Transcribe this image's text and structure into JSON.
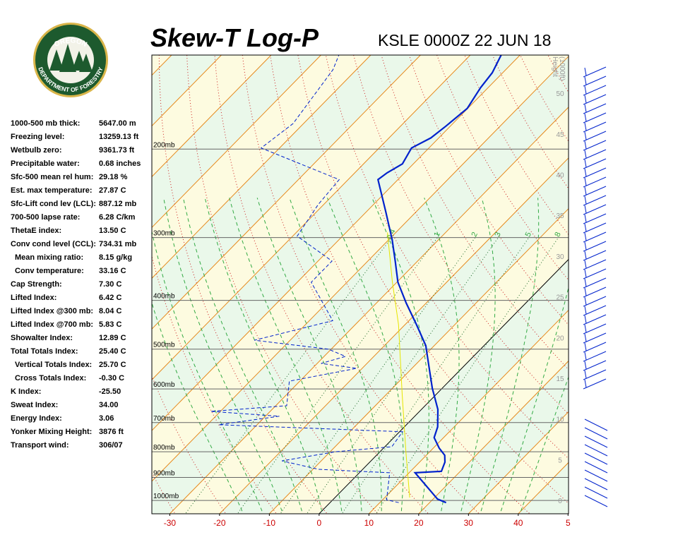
{
  "logo": {
    "top": "OREGON",
    "bottom": "DEPARTMENT OF FORESTRY"
  },
  "stats": [
    {
      "label": "1000-500 mb thick:",
      "value": "5647.00 m"
    },
    {
      "label": "Freezing level:",
      "value": "13259.13 ft"
    },
    {
      "label": "Wetbulb zero:",
      "value": "9361.73 ft"
    },
    {
      "label": "Precipitable water:",
      "value": "0.68 inches"
    },
    {
      "label": "Sfc-500 mean rel hum:",
      "value": "29.18 %"
    },
    {
      "label": "Est. max temperature:",
      "value": "27.87 C"
    },
    {
      "label": "Sfc-Lift cond lev (LCL):",
      "value": "887.12 mb"
    },
    {
      "label": "700-500 lapse rate:",
      "value": "6.28 C/km"
    },
    {
      "label": "ThetaE index:",
      "value": "13.50 C"
    },
    {
      "label": "Conv cond level (CCL):",
      "value": "734.31 mb"
    },
    {
      "label": "Mean mixing ratio:",
      "value": "8.15 g/kg"
    },
    {
      "label": "Conv temperature:",
      "value": "33.16 C"
    },
    {
      "label": "Cap Strength:",
      "value": "7.30 C"
    },
    {
      "label": "Lifted Index:",
      "value": "6.42 C"
    },
    {
      "label": "Lifted Index @300 mb:",
      "value": "8.04 C"
    },
    {
      "label": "Lifted Index @700 mb:",
      "value": "5.83 C"
    },
    {
      "label": "Showalter Index:",
      "value": "12.89 C"
    },
    {
      "label": "Total Totals Index:",
      "value": "25.40 C"
    },
    {
      "label": "Vertical Totals Index:",
      "value": "25.70 C"
    },
    {
      "label": "Cross Totals Index:",
      "value": "-0.30 C"
    },
    {
      "label": "K Index:",
      "value": "-25.50"
    },
    {
      "label": "Sweat Index:",
      "value": "34.00"
    },
    {
      "label": "Energy Index:",
      "value": "3.06"
    },
    {
      "label": "Yonker Mixing Height:",
      "value": "3876 ft"
    },
    {
      "label": "Transport wind:",
      "value": "306/07"
    }
  ],
  "chart_data": {
    "type": "skewt",
    "title": "Skew-T Log-P",
    "subtitle": "KSLE 0000Z 22 JUN 18",
    "xlim": [
      -33.6,
      50.1
    ],
    "xticks": [
      -30,
      -20,
      -10,
      0,
      10,
      20,
      30,
      40,
      {
        "value": 50,
        "label": "5"
      }
    ],
    "ylim": [
      1063,
      130
    ],
    "log_y": true,
    "yticks": [
      {
        "value": 1000,
        "label": "1000mb"
      },
      {
        "value": 900,
        "label": "900mb"
      },
      {
        "value": 800,
        "label": "800mb"
      },
      {
        "value": 700,
        "label": "700mb"
      },
      {
        "value": 600,
        "label": "600mb"
      },
      {
        "value": 500,
        "label": "500mb"
      },
      {
        "value": 400,
        "label": "400mb"
      },
      {
        "value": 300,
        "label": "300mb"
      },
      {
        "value": 200,
        "label": "200mb"
      }
    ],
    "y2label": [
      "Height",
      "(1000ft)"
    ],
    "y2lim": [
      -1.65,
      54.7
    ],
    "y2ticks": [
      0,
      5,
      10,
      15,
      20,
      25,
      30,
      35,
      40,
      45,
      50
    ],
    "mixing_ratio_labels": [
      0.4,
      1,
      2,
      3,
      5,
      8
    ],
    "series": [
      {
        "color": "#0022cc",
        "width": 2.2,
        "dash": "none",
        "pressure": [
          1010,
          994,
          881,
          875,
          839,
          813,
          787,
          750,
          714,
          659,
          598,
          542,
          492,
          447,
          405,
          368,
          334,
          303,
          266,
          230,
          223,
          214,
          199,
          190,
          180,
          166,
          151,
          141,
          130
        ],
        "values": [
          23.3,
          20.9,
          11.2,
          16.2,
          15.1,
          13.7,
          11.2,
          8.1,
          6.7,
          3.3,
          -2.0,
          -6.9,
          -11.7,
          -17.7,
          -24.0,
          -29.8,
          -34.5,
          -39.3,
          -46.2,
          -54.0,
          -53.5,
          -52.2,
          -53.5,
          -51.6,
          -50.9,
          -50.1,
          -51.5,
          -52.1,
          -53.8
        ]
      },
      {
        "color": "#0022cc",
        "width": 1,
        "dash": "5,3",
        "pressure": [
          1010,
          997,
          881,
          867,
          834,
          800,
          782,
          730,
          707,
          680,
          665,
          648,
          579,
          546,
          534,
          517,
          500,
          480,
          439,
          368,
          334,
          298,
          258,
          230,
          199,
          178,
          139,
          130
        ],
        "values": [
          13.8,
          10.8,
          6.1,
          -8.9,
          -17.9,
          -8.9,
          1.4,
          0.6,
          -37.7,
          -27.2,
          -42.0,
          -27.8,
          -32.1,
          -21.1,
          -29.2,
          -25.7,
          -30.6,
          -47.2,
          -35.3,
          -47.2,
          -47.2,
          -59.1,
          -61.1,
          -61.8,
          -83.7,
          -82.1,
          -84.7,
          -86.4
        ]
      },
      {
        "color": "#e6e600",
        "width": 1,
        "dash": "none",
        "pressure": [
          987,
          800,
          617,
          447,
          368,
          293
        ],
        "values": [
          15.0,
          5.2,
          -6.7,
          -21.3,
          -30.9,
          -41.7
        ]
      }
    ]
  }
}
